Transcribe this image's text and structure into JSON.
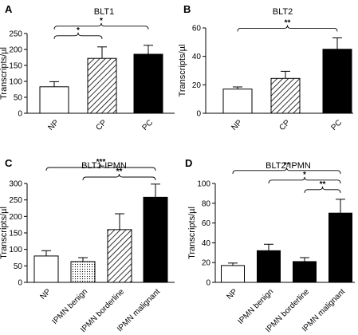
{
  "chart_data": [
    {
      "panel": "A",
      "type": "bar",
      "title": "BLT1",
      "ylabel": "Transcripts/µl",
      "ylim": [
        0,
        250
      ],
      "yticks": [
        "0",
        "50",
        "100",
        "150",
        "200",
        "250"
      ],
      "categories": [
        "NP",
        "CP",
        "PC"
      ],
      "values": [
        83,
        172,
        185
      ],
      "errors": [
        16,
        36,
        28
      ],
      "fills": [
        "open",
        "hatched",
        "solid"
      ],
      "comparisons": [
        {
          "from": 0,
          "to": 1,
          "label": "*",
          "level": 1
        },
        {
          "from": 0,
          "to": 2,
          "label": "*",
          "level": 2
        }
      ]
    },
    {
      "panel": "B",
      "type": "bar",
      "title": "BLT2",
      "ylabel": "Transcripts/µl",
      "ylim": [
        0,
        60
      ],
      "yticks": [
        "0",
        "20",
        "40",
        "60"
      ],
      "categories": [
        "NP",
        "CP",
        "PC"
      ],
      "values": [
        17,
        24.5,
        45
      ],
      "errors": [
        1.5,
        5,
        8
      ],
      "fills": [
        "open",
        "hatched",
        "solid"
      ],
      "comparisons": [
        {
          "from": 0,
          "to": 2,
          "label": "**",
          "level": 1
        }
      ]
    },
    {
      "panel": "C",
      "type": "bar",
      "title": "BLT1-IPMN",
      "ylabel": "Transcripts/µl",
      "ylim": [
        0,
        300
      ],
      "yticks": [
        "0",
        "50",
        "100",
        "150",
        "200",
        "250",
        "300"
      ],
      "categories": [
        "NP",
        "IPMN benign",
        "IPMN borderline",
        "IPMN malignant"
      ],
      "values": [
        80,
        63,
        160,
        258
      ],
      "errors": [
        16,
        12,
        48,
        40
      ],
      "fills": [
        "open",
        "dotted",
        "hatched",
        "solid"
      ],
      "comparisons": [
        {
          "from": 1,
          "to": 3,
          "label": "**",
          "level": 1
        },
        {
          "from": 0,
          "to": 3,
          "label": "***",
          "level": 2
        }
      ]
    },
    {
      "panel": "D",
      "type": "bar",
      "title": "BLT2-IPMN",
      "ylabel": "Transcripts/µl",
      "ylim": [
        0,
        100
      ],
      "yticks": [
        "0",
        "20",
        "40",
        "60",
        "80",
        "100"
      ],
      "categories": [
        "NP",
        "IPMN benign",
        "IPMN borderline",
        "IPMN malignant"
      ],
      "values": [
        17,
        32,
        21,
        70
      ],
      "errors": [
        2.5,
        6.5,
        4,
        14
      ],
      "fills": [
        "open",
        "solid",
        "solid",
        "solid"
      ],
      "comparisons": [
        {
          "from": 2,
          "to": 3,
          "label": "**",
          "level": 1
        },
        {
          "from": 1,
          "to": 3,
          "label": "*",
          "level": 2
        },
        {
          "from": 0,
          "to": 3,
          "label": "**",
          "level": 3
        }
      ]
    }
  ]
}
